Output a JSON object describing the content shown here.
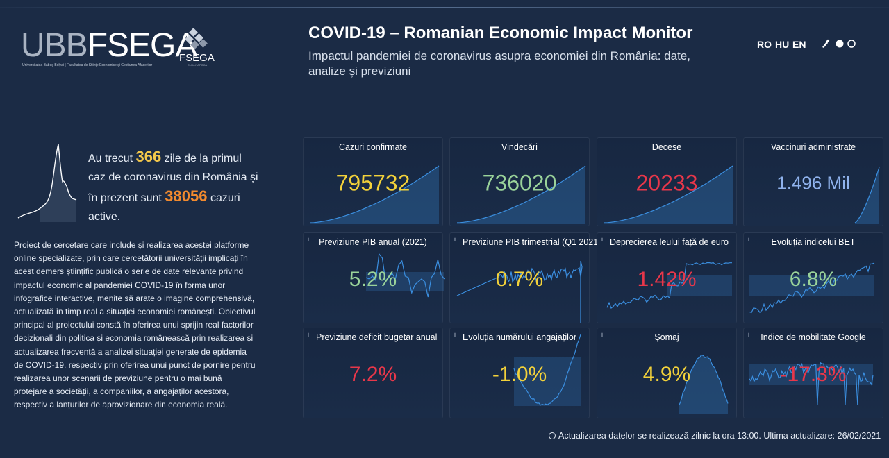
{
  "brand": {
    "ubb": "UBB",
    "fsega": "FSEGA",
    "subtitle": "Universitatea Babeș-Bolyai | Facultatea de Științe Economice și Gestiunea Afacerilor",
    "mark_label": "FSEGA",
    "mark_sub": "CLUJ-NAPOCA"
  },
  "header": {
    "title": "COVID-19 – Romanian Economic Impact Monitor",
    "subtitle": "Impactul pandemiei de coronavirus asupra economiei din România: date, analize și previziuni"
  },
  "languages": [
    "RO",
    "HU",
    "EN"
  ],
  "theme_icons": [
    "brush-icon",
    "theme-dot-filled-icon",
    "theme-dot-outline-icon"
  ],
  "summary": {
    "pre": "Au trecut",
    "days": "366",
    "mid": "zile de la primul caz de coronavirus din România și în prezent sunt",
    "active": "38056",
    "post": "cazuri active."
  },
  "description": "Proiect de cercetare care include și realizarea acestei platforme online specializate, prin care cercetătorii universității implicați în acest demers științific publică o serie de date relevante privind impactul economic al pandemiei COVID-19 în forma unor infografice interactive, menite să arate o imagine comprehensivă, actualizată în timp real a situației economiei românești. Obiectivul principal al proiectului constă în oferirea unui sprijin real factorilor decizionali din politica și economia românească prin realizarea și actualizarea frecventă a analizei situației generate de epidemia de COVID-19, respectiv prin oferirea unui punct de pornire pentru realizarea unor scenarii de previziune pentru o mai bună protejare a societății, a companiilor, a angajaților acestora, respectiv a lanțurilor de aprovizionare din economia reală.",
  "colors": {
    "yellow": "#f3d23a",
    "green": "#9ad39a",
    "red": "#e8374a",
    "blue": "#8fb2ec",
    "line": "#3b8fe0"
  },
  "cards": [
    {
      "title": "Cazuri confirmate",
      "value": "795732",
      "color": "yellow",
      "info": false,
      "shape": "growth"
    },
    {
      "title": "Vindecări",
      "value": "736020",
      "color": "green",
      "info": false,
      "shape": "growth"
    },
    {
      "title": "Decese",
      "value": "20233",
      "color": "red",
      "info": false,
      "shape": "growth"
    },
    {
      "title": "Vaccinuri administrate",
      "value": "1.496 Mil",
      "color": "blue",
      "info": false,
      "shape": "late"
    },
    {
      "title": "Previziune PIB anual (2021)",
      "value": "5.2%",
      "color": "green",
      "info": true,
      "shape": "gdp"
    },
    {
      "title": "Previziune PIB trimestrial (Q1 2021)",
      "value": "0.7%",
      "color": "yellow",
      "info": true,
      "shape": "noisy"
    },
    {
      "title": "Deprecierea leului față de euro",
      "value": "1.42%",
      "color": "red",
      "info": true,
      "shape": "steps"
    },
    {
      "title": "Evoluția indicelui BET",
      "value": "6.8%",
      "color": "green",
      "info": true,
      "shape": "bet"
    },
    {
      "title": "Previziune deficit bugetar anual",
      "value": "7.2%",
      "color": "red",
      "info": true,
      "shape": "none"
    },
    {
      "title": "Evoluția numărului angajaților",
      "value": "-1.0%",
      "color": "yellow",
      "info": true,
      "shape": "dip"
    },
    {
      "title": "Șomaj",
      "value": "4.9%",
      "color": "yellow",
      "info": true,
      "shape": "hump"
    },
    {
      "title": "Indice de mobilitate Google",
      "value": "-17.3%",
      "color": "red",
      "info": true,
      "shape": "mobility"
    }
  ],
  "footer": {
    "text": "Actualizarea datelor se realizează zilnic la ora",
    "time": "13:00",
    "text2": ". Ultima actualizare:",
    "date": "26/02/2021"
  }
}
